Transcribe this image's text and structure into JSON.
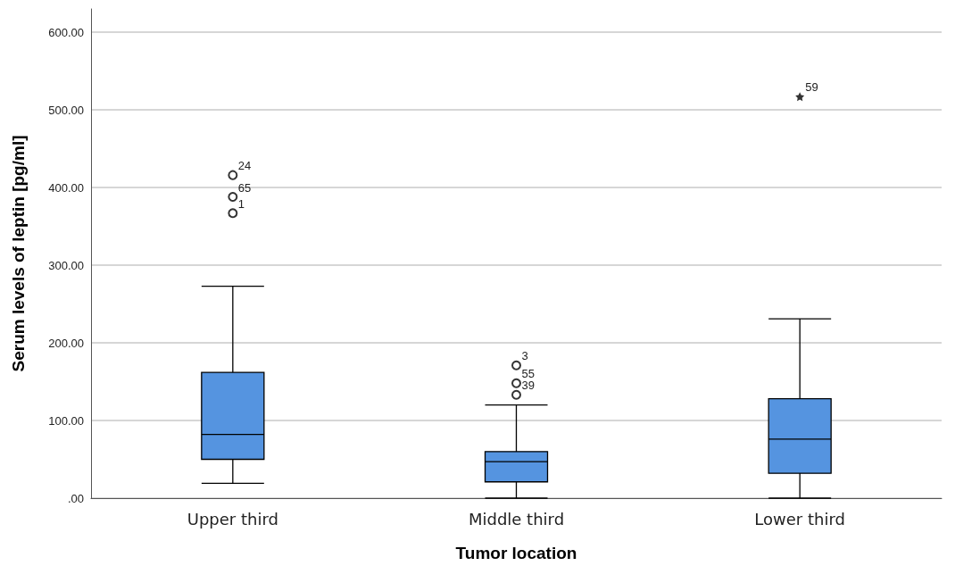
{
  "chart_data": {
    "type": "box",
    "xlabel": "Tumor location",
    "ylabel": "Serum levels of leptin [pg/ml]",
    "categories": [
      "Upper third",
      "Middle third",
      "Lower third"
    ],
    "ylim": [
      0,
      630
    ],
    "yticks": [
      {
        "value": 0,
        "label": ".00"
      },
      {
        "value": 100,
        "label": "100.00"
      },
      {
        "value": 200,
        "label": "200.00"
      },
      {
        "value": 300,
        "label": "300.00"
      },
      {
        "value": 400,
        "label": "400.00"
      },
      {
        "value": 500,
        "label": "500.00"
      },
      {
        "value": 600,
        "label": "600.00"
      }
    ],
    "grid": "y",
    "series": [
      {
        "color": "#5594e0",
        "boxes": [
          {
            "low": 19,
            "q1": 50,
            "median": 82,
            "q3": 162,
            "high": 273
          },
          {
            "low": 0,
            "q1": 21,
            "median": 47,
            "q3": 60,
            "high": 120
          },
          {
            "low": 0,
            "q1": 32,
            "median": 76,
            "q3": 128,
            "high": 231
          }
        ]
      },
      {
        "type": "scatter",
        "x": [
          "Upper third",
          "Upper third",
          "Upper third",
          "Middle third",
          "Middle third",
          "Middle third"
        ],
        "values": [
          416,
          388,
          367,
          171,
          148,
          133
        ],
        "marker": "circle",
        "color": "#000000"
      },
      {
        "type": "scatter",
        "x": [
          "Lower third"
        ],
        "values": [
          517
        ],
        "marker": "star",
        "color": "#000000"
      }
    ],
    "annotations": [
      {
        "text": "24",
        "x": "Upper third",
        "y": 416
      },
      {
        "text": "65",
        "x": "Upper third",
        "y": 388
      },
      {
        "text": "1",
        "x": "Upper third",
        "y": 367
      },
      {
        "text": "3",
        "x": "Middle third",
        "y": 171
      },
      {
        "text": "55",
        "x": "Middle third",
        "y": 148
      },
      {
        "text": "39",
        "x": "Middle third",
        "y": 133
      },
      {
        "text": "59",
        "x": "Lower third",
        "y": 517
      }
    ]
  }
}
